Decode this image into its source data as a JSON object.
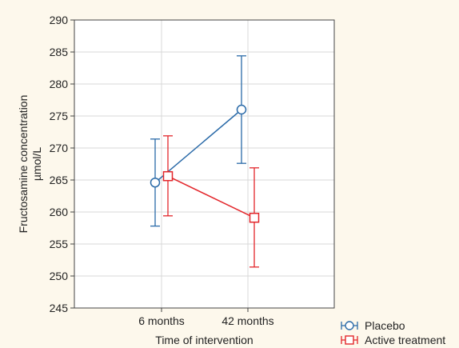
{
  "chart_data": {
    "type": "line",
    "title": "",
    "xlabel": "Time of intervention",
    "ylabel_lines": [
      "Fructosamine concentration",
      "µmol/L"
    ],
    "categories": [
      "6 months",
      "42 months"
    ],
    "ylim": [
      245,
      290
    ],
    "yticks": [
      245,
      250,
      255,
      260,
      265,
      270,
      275,
      280,
      285,
      290
    ],
    "grid": true,
    "legend_position": "bottom-right, outside plot",
    "series": [
      {
        "name": "Placebo",
        "marker": "circle",
        "color": "#2a6aa8",
        "values": [
          264.6,
          276.0
        ],
        "lower": [
          257.8,
          267.6
        ],
        "upper": [
          271.4,
          284.4
        ]
      },
      {
        "name": "Active treatment",
        "marker": "square",
        "color": "#e3262b",
        "values": [
          265.6,
          259.1
        ],
        "lower": [
          259.4,
          251.4
        ],
        "upper": [
          271.9,
          266.9
        ]
      }
    ]
  }
}
